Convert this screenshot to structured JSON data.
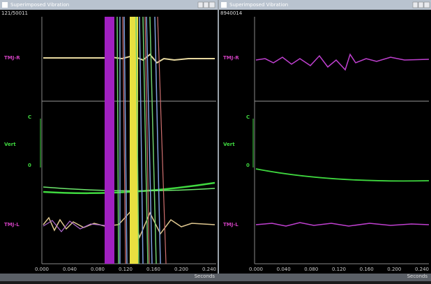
{
  "windows": [
    {
      "title": "Superimposed Vibration",
      "record_id": "121/50011",
      "channels": [
        "TMJ-R",
        "Vert",
        "TMJ-L"
      ],
      "scale_labels": [
        "C",
        "0"
      ],
      "x_ticks": [
        "0.000",
        "0.040",
        "0.080",
        "0.120",
        "0.160",
        "0.200",
        "0.240"
      ],
      "x_axis_label": "Seconds"
    },
    {
      "title": "Superimposed Vibration",
      "record_id": "8940014",
      "channels": [
        "TMJ-R",
        "Vert",
        "TMJ-L"
      ],
      "scale_labels": [
        "C",
        "0"
      ],
      "x_ticks": [
        "0.000",
        "0.040",
        "0.080",
        "0.120",
        "0.160",
        "0.200",
        "0.240"
      ],
      "x_axis_label": "Seconds"
    }
  ]
}
